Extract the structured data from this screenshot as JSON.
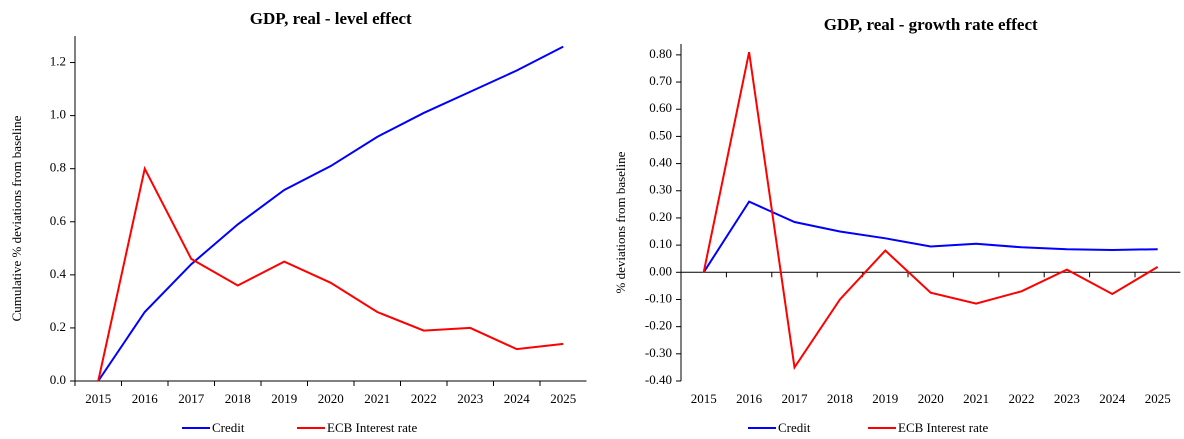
{
  "chart_data": [
    {
      "type": "line",
      "title": "GDP, real - level effect",
      "y_label": "Cumulative % deviations from baseline",
      "categories": [
        "2015",
        "2016",
        "2017",
        "2018",
        "2019",
        "2020",
        "2021",
        "2022",
        "2023",
        "2024",
        "2025"
      ],
      "series": [
        {
          "name": "Credit",
          "color": "#0000ff",
          "values": [
            0,
            0.26,
            0.44,
            0.59,
            0.72,
            0.81,
            0.92,
            1.01,
            1.09,
            1.17,
            1.26
          ]
        },
        {
          "name": "ECB Interest rate",
          "color": "#ff0000",
          "values": [
            0,
            0.8,
            0.46,
            0.36,
            0.45,
            0.37,
            0.26,
            0.19,
            0.2,
            0.12,
            0.14
          ]
        }
      ],
      "ylim": [
        0,
        1.3
      ],
      "yticks": [
        {
          "value": 0,
          "label": "0.0"
        },
        0.2,
        0.4,
        0.6,
        0.8,
        {
          "value": 1,
          "label": "1.0"
        },
        1.2
      ]
    },
    {
      "type": "line",
      "title": "GDP, real - growth rate effect",
      "y_label": "% deviations from baseline",
      "categories": [
        "2015",
        "2016",
        "2017",
        "2018",
        "2019",
        "2020",
        "2021",
        "2022",
        "2023",
        "2024",
        "2025"
      ],
      "series": [
        {
          "name": "Credit",
          "color": "#0000ff",
          "values": [
            0,
            0.26,
            0.185,
            0.15,
            0.125,
            0.095,
            0.105,
            0.092,
            0.085,
            0.082,
            0.085
          ]
        },
        {
          "name": "ECB Interest rate",
          "color": "#ff0000",
          "values": [
            0,
            0.81,
            -0.35,
            -0.1,
            0.08,
            -0.075,
            -0.115,
            -0.07,
            0.01,
            -0.08,
            0.02
          ]
        }
      ],
      "ylim": [
        -0.4,
        0.84
      ],
      "yticks": [
        {
          "value": -0.4,
          "label": "-0.40"
        },
        {
          "value": -0.3,
          "label": "-0.30"
        },
        {
          "value": -0.2,
          "label": "-0.20"
        },
        {
          "value": -0.1,
          "label": "-0.10"
        },
        {
          "value": 0,
          "label": "0.00"
        },
        {
          "value": 0.1,
          "label": "0.10"
        },
        {
          "value": 0.2,
          "label": "0.20"
        },
        {
          "value": 0.3,
          "label": "0.30"
        },
        {
          "value": 0.4,
          "label": "0.40"
        },
        {
          "value": 0.5,
          "label": "0.50"
        },
        {
          "value": 0.6,
          "label": "0.60"
        },
        {
          "value": 0.7,
          "label": "0.70"
        },
        {
          "value": 0.8,
          "label": "0.80"
        }
      ]
    }
  ]
}
